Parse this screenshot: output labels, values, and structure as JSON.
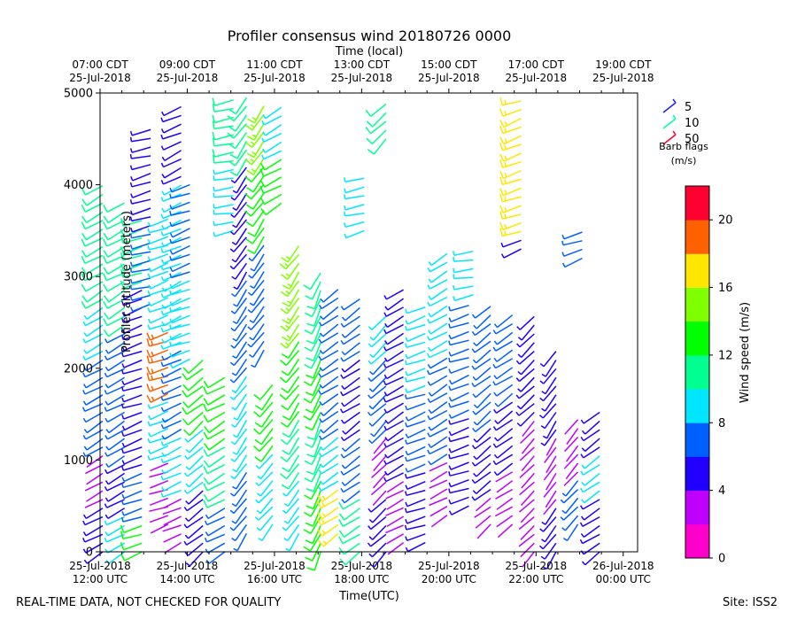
{
  "chart_data": {
    "type": "barbs",
    "title": "Profiler consensus wind 20180726 0000",
    "top_axis_label": "Time (local)",
    "xlabel": "Time(UTC)",
    "ylabel": "Profiler altitude (meters)",
    "ylim": [
      0,
      5000
    ],
    "y_ticks": [
      0,
      1000,
      2000,
      3000,
      4000,
      5000
    ],
    "xlim_hours": [
      0,
      12.33
    ],
    "bottom_ticks": [
      {
        "hour": 0,
        "date": "25-Jul-2018",
        "time": "12:00 UTC"
      },
      {
        "hour": 2,
        "date": "25-Jul-2018",
        "time": "14:00 UTC"
      },
      {
        "hour": 4,
        "date": "25-Jul-2018",
        "time": "16:00 UTC"
      },
      {
        "hour": 6,
        "date": "25-Jul-2018",
        "time": "18:00 UTC"
      },
      {
        "hour": 8,
        "date": "25-Jul-2018",
        "time": "20:00 UTC"
      },
      {
        "hour": 10,
        "date": "25-Jul-2018",
        "time": "22:00 UTC"
      },
      {
        "hour": 12,
        "date": "26-Jul-2018",
        "time": "00:00 UTC"
      }
    ],
    "top_ticks": [
      {
        "hour": 0,
        "time": "07:00 CDT",
        "date": "25-Jul-2018"
      },
      {
        "hour": 2,
        "time": "09:00 CDT",
        "date": "25-Jul-2018"
      },
      {
        "hour": 4,
        "time": "11:00 CDT",
        "date": "25-Jul-2018"
      },
      {
        "hour": 6,
        "time": "13:00 CDT",
        "date": "25-Jul-2018"
      },
      {
        "hour": 8,
        "time": "15:00 CDT",
        "date": "25-Jul-2018"
      },
      {
        "hour": 10,
        "time": "17:00 CDT",
        "date": "25-Jul-2018"
      },
      {
        "hour": 12,
        "time": "19:00 CDT",
        "date": "25-Jul-2018"
      }
    ],
    "legend": {
      "title": "Barb flags",
      "units": "(m/s)",
      "entries": [
        {
          "label": "5",
          "color": "#1e1eff"
        },
        {
          "label": "10",
          "color": "#00ffaa"
        },
        {
          "label": "50",
          "color": "#ff0030"
        }
      ]
    },
    "colorbar": {
      "label": "Wind speed (m/s)",
      "range": [
        0,
        22
      ],
      "ticks": [
        0,
        4,
        8,
        12,
        16,
        20
      ],
      "bin_width": 2,
      "colors": [
        "#ff00cc",
        "#c000ff",
        "#2000ff",
        "#0060ff",
        "#00e6ff",
        "#00ff90",
        "#00ff00",
        "#80ff00",
        "#ffe600",
        "#ff6000",
        "#ff0030"
      ]
    },
    "columns": [
      {
        "hour": 0.06,
        "low": 0,
        "high": 4000,
        "cuts": [
          [
            500,
            5
          ],
          [
            1100,
            3
          ],
          [
            2100,
            7
          ],
          [
            2700,
            9
          ],
          [
            4000,
            11
          ]
        ],
        "dir": 240
      },
      {
        "hour": 0.56,
        "low": 0,
        "high": 3800,
        "cuts": [
          [
            400,
            9
          ],
          [
            1000,
            5
          ],
          [
            2400,
            7
          ],
          [
            3800,
            11
          ]
        ],
        "dir": 240
      },
      {
        "hour": 0.96,
        "low": 0,
        "high": 3700,
        "cuts": [
          [
            300,
            13
          ],
          [
            900,
            7
          ],
          [
            2900,
            5
          ],
          [
            3700,
            11
          ]
        ],
        "dir": 250
      },
      {
        "hour": 1.16,
        "low": 2700,
        "high": 4650,
        "cuts": [
          [
            3500,
            7
          ],
          [
            4650,
            5
          ]
        ],
        "dir": 255
      },
      {
        "hour": 1.56,
        "low": 300,
        "high": 3700,
        "cuts": [
          [
            1000,
            3
          ],
          [
            1700,
            9
          ],
          [
            2400,
            18
          ],
          [
            3700,
            9
          ]
        ],
        "dir": 250
      },
      {
        "hour": 1.86,
        "low": 100,
        "high": 4900,
        "cuts": [
          [
            600,
            3
          ],
          [
            1300,
            9
          ],
          [
            2200,
            7
          ],
          [
            4000,
            9
          ],
          [
            4900,
            5
          ]
        ],
        "dir": 245
      },
      {
        "hour": 2.06,
        "low": 2100,
        "high": 4000,
        "cuts": [
          [
            3000,
            9
          ],
          [
            4000,
            7
          ]
        ],
        "dir": 250
      },
      {
        "hour": 2.36,
        "low": 0,
        "high": 2100,
        "cuts": [
          [
            700,
            5
          ],
          [
            1400,
            9
          ],
          [
            2100,
            13
          ]
        ],
        "dir": 230
      },
      {
        "hour": 2.86,
        "low": 0,
        "high": 1900,
        "cuts": [
          [
            500,
            7
          ],
          [
            1200,
            11
          ],
          [
            1900,
            13
          ]
        ],
        "dir": 240
      },
      {
        "hour": 3.06,
        "low": 3500,
        "high": 4950,
        "cuts": [
          [
            4200,
            9
          ],
          [
            4950,
            11
          ]
        ],
        "dir": 260
      },
      {
        "hour": 3.36,
        "low": 200,
        "high": 4950,
        "cuts": [
          [
            900,
            7
          ],
          [
            2000,
            9
          ],
          [
            3000,
            7
          ],
          [
            4200,
            5
          ],
          [
            4950,
            11
          ]
        ],
        "dir": 215
      },
      {
        "hour": 3.76,
        "low": 2200,
        "high": 4950,
        "cuts": [
          [
            3400,
            7
          ],
          [
            4200,
            13
          ],
          [
            4950,
            15
          ]
        ],
        "dir": 215
      },
      {
        "hour": 3.96,
        "low": 300,
        "high": 1900,
        "cuts": [
          [
            1100,
            9
          ],
          [
            1900,
            13
          ]
        ],
        "dir": 220
      },
      {
        "hour": 4.16,
        "low": 3800,
        "high": 4900,
        "cuts": [
          [
            4300,
            13
          ],
          [
            4900,
            9
          ]
        ],
        "dir": 240
      },
      {
        "hour": 4.56,
        "low": 200,
        "high": 3400,
        "cuts": [
          [
            800,
            9
          ],
          [
            1500,
            11
          ],
          [
            2300,
            13
          ],
          [
            3400,
            15
          ]
        ],
        "dir": 215
      },
      {
        "hour": 5.06,
        "low": 0,
        "high": 3100,
        "cuts": [
          [
            800,
            13
          ],
          [
            1500,
            11
          ],
          [
            2100,
            13
          ],
          [
            3100,
            11
          ]
        ],
        "dir": 205
      },
      {
        "hour": 5.46,
        "low": 200,
        "high": 2900,
        "cuts": [
          [
            700,
            17
          ],
          [
            1300,
            9
          ],
          [
            2000,
            7
          ],
          [
            2900,
            7
          ]
        ],
        "dir": 235
      },
      {
        "hour": 5.96,
        "low": 0,
        "high": 2800,
        "cuts": [
          [
            600,
            11
          ],
          [
            1300,
            7
          ],
          [
            2100,
            5
          ],
          [
            2800,
            7
          ]
        ],
        "dir": 235
      },
      {
        "hour": 6.06,
        "low": 3500,
        "high": 4100,
        "cuts": [
          [
            4100,
            9
          ]
        ],
        "dir": 255
      },
      {
        "hour": 6.56,
        "low": 0,
        "high": 2600,
        "cuts": [
          [
            600,
            5
          ],
          [
            1300,
            3
          ],
          [
            2100,
            7
          ],
          [
            2600,
            9
          ]
        ],
        "dir": 225
      },
      {
        "hour": 6.56,
        "low": 4500,
        "high": 4950,
        "cuts": [
          [
            4950,
            11
          ]
        ],
        "dir": 225
      },
      {
        "hour": 6.96,
        "low": 100,
        "high": 2900,
        "cuts": [
          [
            800,
            3
          ],
          [
            1600,
            5
          ],
          [
            2900,
            5
          ]
        ],
        "dir": 240
      },
      {
        "hour": 7.46,
        "low": 100,
        "high": 2700,
        "cuts": [
          [
            900,
            5
          ],
          [
            1800,
            7
          ],
          [
            2700,
            9
          ]
        ],
        "dir": 250
      },
      {
        "hour": 7.96,
        "low": 400,
        "high": 3300,
        "cuts": [
          [
            1000,
            3
          ],
          [
            2200,
            7
          ],
          [
            3300,
            9
          ]
        ],
        "dir": 240
      },
      {
        "hour": 8.46,
        "low": 500,
        "high": 2700,
        "cuts": [
          [
            1500,
            5
          ],
          [
            2700,
            7
          ]
        ],
        "dir": 250
      },
      {
        "hour": 8.56,
        "low": 2800,
        "high": 3300,
        "cuts": [
          [
            3300,
            9
          ]
        ],
        "dir": 260
      },
      {
        "hour": 8.96,
        "low": 300,
        "high": 2700,
        "cuts": [
          [
            600,
            3
          ],
          [
            1400,
            5
          ],
          [
            2700,
            7
          ]
        ],
        "dir": 230
      },
      {
        "hour": 9.46,
        "low": 300,
        "high": 2600,
        "cuts": [
          [
            900,
            3
          ],
          [
            1700,
            5
          ],
          [
            2600,
            7
          ]
        ],
        "dir": 235
      },
      {
        "hour": 9.96,
        "low": 0,
        "high": 2600,
        "cuts": [
          [
            700,
            3
          ],
          [
            1500,
            3
          ],
          [
            2600,
            5
          ]
        ],
        "dir": 225
      },
      {
        "hour": 10.46,
        "low": 0,
        "high": 2200,
        "cuts": [
          [
            500,
            5
          ],
          [
            1300,
            3
          ],
          [
            2200,
            5
          ]
        ],
        "dir": 215
      },
      {
        "hour": 10.96,
        "low": 300,
        "high": 1500,
        "cuts": [
          [
            800,
            7
          ],
          [
            1500,
            3
          ]
        ],
        "dir": 220
      },
      {
        "hour": 11.46,
        "low": 0,
        "high": 1600,
        "cuts": [
          [
            600,
            5
          ],
          [
            1100,
            9
          ],
          [
            1600,
            5
          ]
        ],
        "dir": 235
      },
      {
        "hour": 9.66,
        "low": 3300,
        "high": 5000,
        "cuts": [
          [
            3400,
            5
          ],
          [
            5000,
            17
          ]
        ],
        "dir": 250
      },
      {
        "hour": 11.06,
        "low": 3200,
        "high": 3500,
        "cuts": [
          [
            3500,
            7
          ]
        ],
        "dir": 250
      }
    ]
  }
}
